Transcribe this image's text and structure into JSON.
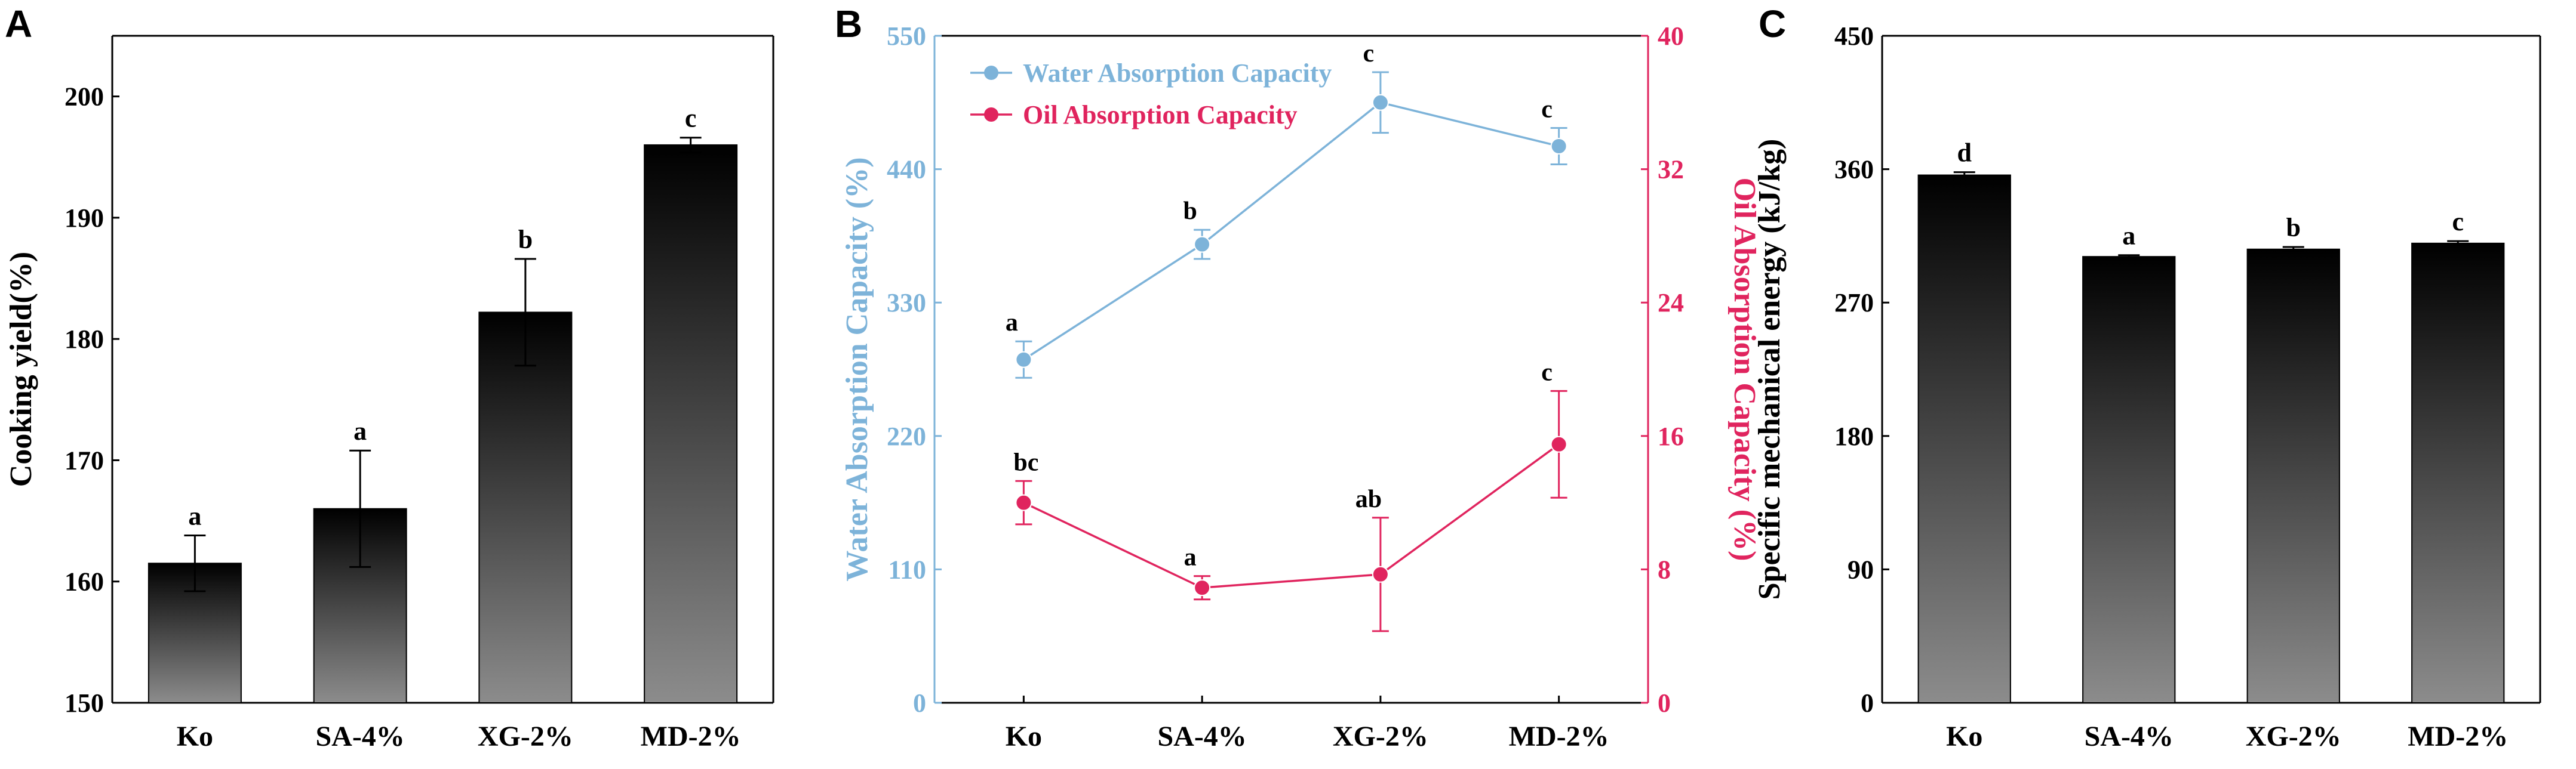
{
  "colors": {
    "axis": "#000000",
    "bar_top": "#000000",
    "bar_bottom": "#8c8c8c",
    "water": "#7db3d9",
    "oil": "#e0245e"
  },
  "chart_data": [
    {
      "panel": "A",
      "type": "bar",
      "title": "",
      "xlabel": "",
      "ylabel": "Cooking yield(%)",
      "categories": [
        "Ko",
        "SA-4%",
        "XG-2%",
        "MD-2%"
      ],
      "values": [
        161.5,
        166.0,
        182.2,
        196.0
      ],
      "errors": [
        2.3,
        4.8,
        4.4,
        0.6
      ],
      "significance": [
        "a",
        "a",
        "b",
        "c"
      ],
      "ylim": [
        150,
        205
      ],
      "yticks": [
        150,
        160,
        170,
        180,
        190,
        200
      ],
      "grid": false
    },
    {
      "panel": "B",
      "type": "line",
      "title": "",
      "xlabel": "",
      "categories": [
        "Ko",
        "SA-4%",
        "XG-2%",
        "MD-2%"
      ],
      "legend_position": "top-left",
      "y_left": {
        "label": "Water Absorption Capacity (%)",
        "lim": [
          0,
          550
        ],
        "ticks": [
          0,
          110,
          220,
          330,
          440,
          550
        ]
      },
      "y_right": {
        "label": "Oil Absorption Capacity (%)",
        "lim": [
          0,
          40
        ],
        "ticks": [
          0,
          8,
          16,
          24,
          32,
          40
        ]
      },
      "series": [
        {
          "name": "Water Absorption Capacity",
          "axis": "left",
          "values": [
            283,
            378,
            495,
            459
          ],
          "errors": [
            15,
            12,
            25,
            15
          ],
          "significance": [
            "a",
            "b",
            "c",
            "c"
          ]
        },
        {
          "name": "Oil Absorption Capacity",
          "axis": "right",
          "values": [
            12.0,
            6.9,
            7.7,
            15.5
          ],
          "errors": [
            1.3,
            0.7,
            3.4,
            3.2
          ],
          "significance": [
            "bc",
            "a",
            "ab",
            "c"
          ]
        }
      ],
      "grid": false
    },
    {
      "panel": "C",
      "type": "bar",
      "title": "",
      "xlabel": "",
      "ylabel": "Specific mechanical energy (kJ/kg)",
      "categories": [
        "Ko",
        "SA-4%",
        "XG-2%",
        "MD-2%"
      ],
      "values": [
        356,
        301,
        306,
        310
      ],
      "errors": [
        2.0,
        1.0,
        1.5,
        1.5
      ],
      "significance": [
        "d",
        "a",
        "b",
        "c"
      ],
      "ylim": [
        0,
        450
      ],
      "yticks": [
        0,
        90,
        180,
        270,
        360,
        450
      ],
      "grid": false
    }
  ]
}
